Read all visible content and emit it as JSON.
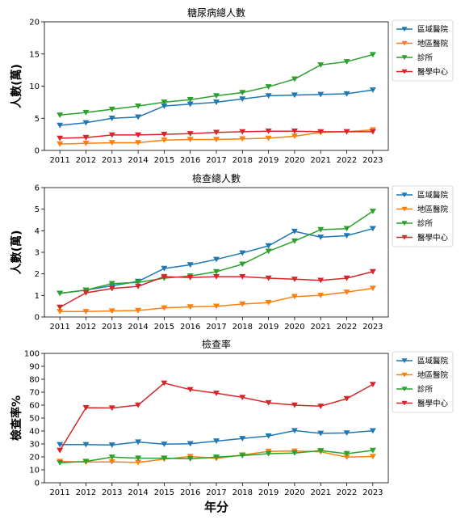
{
  "xlabel": "年分",
  "chart_data": [
    {
      "type": "line",
      "title": "糖尿病總人數",
      "ylabel": "人數(萬)",
      "x": [
        2011,
        2012,
        2013,
        2014,
        2015,
        2016,
        2017,
        2018,
        2019,
        2020,
        2021,
        2022,
        2023
      ],
      "ylim": [
        0,
        20
      ],
      "yticks": [
        0,
        5,
        10,
        15,
        20
      ],
      "legend_position": "outside-top-right",
      "series": [
        {
          "name": "區域醫院",
          "color": "#1f77b4",
          "values": [
            3.9,
            4.3,
            5.0,
            5.2,
            6.9,
            7.2,
            7.5,
            8.0,
            8.5,
            8.6,
            8.7,
            8.8,
            9.4
          ]
        },
        {
          "name": "地區醫院",
          "color": "#ff7f0e",
          "values": [
            1.0,
            1.1,
            1.2,
            1.2,
            1.6,
            1.7,
            1.7,
            1.8,
            1.9,
            2.2,
            2.8,
            2.9,
            3.2
          ]
        },
        {
          "name": "診所",
          "color": "#2ca02c",
          "values": [
            5.5,
            5.9,
            6.4,
            6.9,
            7.5,
            7.9,
            8.5,
            9.0,
            9.9,
            11.1,
            13.3,
            13.8,
            14.9
          ]
        },
        {
          "name": "醫學中心",
          "color": "#d62728",
          "values": [
            1.9,
            2.0,
            2.4,
            2.4,
            2.5,
            2.6,
            2.8,
            2.9,
            3.0,
            3.0,
            2.9,
            2.9,
            2.9
          ]
        }
      ]
    },
    {
      "type": "line",
      "title": "檢查總人數",
      "ylabel": "人數(萬)",
      "x": [
        2011,
        2012,
        2013,
        2014,
        2015,
        2016,
        2017,
        2018,
        2019,
        2020,
        2021,
        2022,
        2023
      ],
      "ylim": [
        0,
        6
      ],
      "yticks": [
        0,
        1,
        2,
        3,
        4,
        5,
        6
      ],
      "legend_position": "outside-top-right",
      "series": [
        {
          "name": "區域醫院",
          "color": "#1f77b4",
          "values": [
            1.1,
            1.25,
            1.45,
            1.65,
            2.25,
            2.42,
            2.67,
            2.97,
            3.3,
            3.97,
            3.7,
            3.77,
            4.1
          ]
        },
        {
          "name": "地區醫院",
          "color": "#ff7f0e",
          "values": [
            0.25,
            0.25,
            0.28,
            0.3,
            0.42,
            0.47,
            0.5,
            0.6,
            0.67,
            0.95,
            1.0,
            1.15,
            1.33
          ]
        },
        {
          "name": "診所",
          "color": "#2ca02c",
          "values": [
            1.1,
            1.25,
            1.55,
            1.6,
            1.8,
            1.9,
            2.1,
            2.45,
            3.05,
            3.52,
            4.05,
            4.1,
            4.9
          ]
        },
        {
          "name": "醫學中心",
          "color": "#d62728",
          "values": [
            0.45,
            1.12,
            1.32,
            1.42,
            1.87,
            1.83,
            1.87,
            1.87,
            1.8,
            1.75,
            1.7,
            1.8,
            2.1
          ]
        }
      ]
    },
    {
      "type": "line",
      "title": "檢查率",
      "ylabel": "檢查率%",
      "x": [
        2011,
        2012,
        2013,
        2014,
        2015,
        2016,
        2017,
        2018,
        2019,
        2020,
        2021,
        2022,
        2023
      ],
      "ylim": [
        0,
        100
      ],
      "yticks": [
        0,
        10,
        20,
        30,
        40,
        50,
        60,
        70,
        80,
        90,
        100
      ],
      "legend_position": "outside-top-right",
      "series": [
        {
          "name": "區域醫院",
          "color": "#1f77b4",
          "values": [
            29.5,
            29.5,
            29.2,
            31.5,
            29.8,
            30.2,
            32.2,
            34.2,
            36.2,
            40.3,
            38.2,
            38.5,
            40.2
          ]
        },
        {
          "name": "地區醫院",
          "color": "#ff7f0e",
          "values": [
            16.5,
            16.0,
            16.2,
            15.7,
            18.3,
            20.3,
            18.8,
            21.5,
            24.3,
            24.5,
            24.0,
            19.8,
            20.3
          ]
        },
        {
          "name": "診所",
          "color": "#2ca02c",
          "values": [
            15.5,
            16.5,
            19.8,
            19.0,
            19.0,
            18.5,
            19.8,
            21.0,
            22.5,
            23.0,
            24.8,
            22.5,
            25.0
          ]
        },
        {
          "name": "醫學中心",
          "color": "#d62728",
          "values": [
            25.0,
            58.0,
            57.8,
            60.0,
            77.0,
            72.0,
            69.2,
            66.0,
            61.8,
            60.0,
            59.2,
            65.0,
            76.0
          ]
        }
      ]
    }
  ]
}
